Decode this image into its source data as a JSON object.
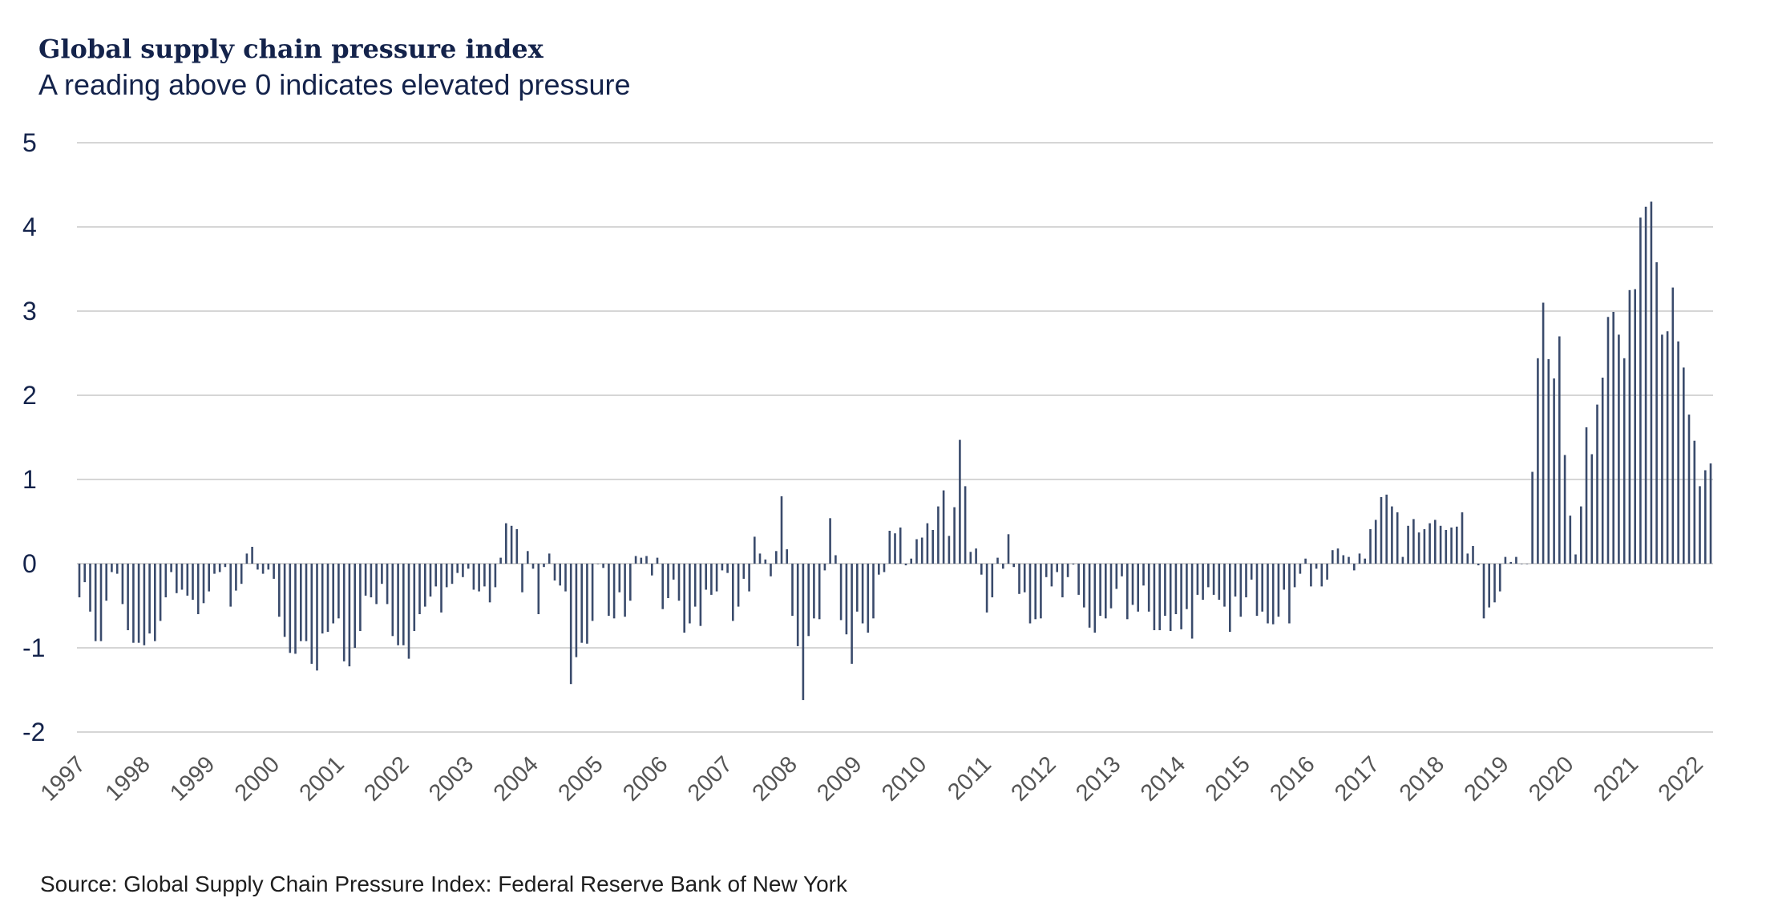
{
  "chart_data": {
    "type": "bar",
    "title": "Global supply chain pressure index",
    "subtitle": "A reading above 0 indicates elevated pressure",
    "source": "Source: Global Supply Chain Pressure Index: Federal Reserve Bank of New York",
    "xlabel": "",
    "ylabel": "",
    "ylim": [
      -2,
      5
    ],
    "y_ticks": [
      "5",
      "4",
      "3",
      "2",
      "1",
      "0",
      "-1",
      "-2"
    ],
    "y_tick_values": [
      5,
      4,
      3,
      2,
      1,
      0,
      -1,
      -2
    ],
    "x_ticks": [
      "1997",
      "1998",
      "1999",
      "2000",
      "2001",
      "2002",
      "2003",
      "2004",
      "2005",
      "2006",
      "2007",
      "2008",
      "2009",
      "2010",
      "2011",
      "2012",
      "2013",
      "2014",
      "2015",
      "2016",
      "2017",
      "2018",
      "2019",
      "2020",
      "2021",
      "2022"
    ],
    "frequency": "monthly",
    "grid": true,
    "colors": {
      "bars": "#3a4b6c",
      "grid": "#d6d6d6",
      "title": "#14234b"
    },
    "values": [
      -0.4,
      -0.22,
      -0.57,
      -0.92,
      -0.92,
      -0.44,
      -0.1,
      -0.12,
      -0.48,
      -0.79,
      -0.94,
      -0.94,
      -0.97,
      -0.83,
      -0.92,
      -0.68,
      -0.4,
      -0.1,
      -0.35,
      -0.31,
      -0.38,
      -0.43,
      -0.6,
      -0.47,
      -0.33,
      -0.12,
      -0.1,
      -0.04,
      -0.51,
      -0.32,
      -0.24,
      0.12,
      0.2,
      -0.07,
      -0.12,
      -0.07,
      -0.18,
      -0.63,
      -0.87,
      -1.06,
      -1.07,
      -0.92,
      -0.92,
      -1.19,
      -1.27,
      -0.83,
      -0.81,
      -0.71,
      -0.65,
      -1.16,
      -1.22,
      -1.0,
      -0.8,
      -0.38,
      -0.4,
      -0.48,
      -0.24,
      -0.48,
      -0.86,
      -0.97,
      -0.97,
      -1.13,
      -0.8,
      -0.6,
      -0.51,
      -0.39,
      -0.27,
      -0.58,
      -0.28,
      -0.24,
      -0.11,
      -0.16,
      -0.06,
      -0.31,
      -0.33,
      -0.27,
      -0.46,
      -0.28,
      0.07,
      0.48,
      0.45,
      0.41,
      -0.34,
      0.15,
      -0.06,
      -0.6,
      -0.04,
      0.12,
      -0.2,
      -0.26,
      -0.33,
      -1.43,
      -1.11,
      -0.94,
      -0.95,
      -0.68,
      0,
      -0.05,
      -0.62,
      -0.65,
      -0.34,
      -0.63,
      -0.44,
      0.09,
      0.07,
      0.09,
      -0.14,
      0.07,
      -0.54,
      -0.41,
      -0.19,
      -0.44,
      -0.82,
      -0.71,
      -0.51,
      -0.74,
      -0.31,
      -0.37,
      -0.33,
      -0.08,
      -0.11,
      -0.68,
      -0.51,
      -0.18,
      -0.33,
      0.32,
      0.12,
      0.05,
      -0.15,
      0.15,
      0.8,
      0.17,
      -0.62,
      -0.98,
      -1.62,
      -0.86,
      -0.65,
      -0.66,
      -0.08,
      0.54,
      0.1,
      -0.67,
      -0.84,
      -1.19,
      -0.57,
      -0.71,
      -0.82,
      -0.65,
      -0.13,
      -0.1,
      0.39,
      0.36,
      0.43,
      -0.02,
      0.06,
      0.29,
      0.31,
      0.48,
      0.4,
      0.68,
      0.87,
      0.33,
      0.67,
      1.47,
      0.92,
      0.14,
      0.18,
      -0.13,
      -0.58,
      -0.4,
      0.07,
      -0.06,
      0.35,
      -0.04,
      -0.36,
      -0.34,
      -0.71,
      -0.66,
      -0.65,
      -0.16,
      -0.27,
      -0.1,
      -0.4,
      -0.16,
      -0.01,
      -0.37,
      -0.52,
      -0.76,
      -0.82,
      -0.62,
      -0.65,
      -0.53,
      -0.3,
      -0.15,
      -0.66,
      -0.49,
      -0.57,
      -0.26,
      -0.57,
      -0.79,
      -0.79,
      -0.62,
      -0.8,
      -0.6,
      -0.78,
      -0.54,
      -0.89,
      -0.37,
      -0.43,
      -0.28,
      -0.37,
      -0.43,
      -0.51,
      -0.81,
      -0.39,
      -0.63,
      -0.4,
      -0.19,
      -0.62,
      -0.57,
      -0.71,
      -0.72,
      -0.63,
      -0.31,
      -0.71,
      -0.28,
      -0.12,
      0.06,
      -0.27,
      -0.06,
      -0.27,
      -0.19,
      0.16,
      0.18,
      0.1,
      0.08,
      -0.08,
      0.12,
      0.06,
      0.41,
      0.52,
      0.79,
      0.82,
      0.68,
      0.61,
      0.08,
      0.45,
      0.53,
      0.37,
      0.41,
      0.48,
      0.52,
      0.45,
      0.4,
      0.43,
      0.44,
      0.61,
      0.12,
      0.21,
      -0.02,
      -0.65,
      -0.52,
      -0.46,
      -0.33,
      0.08,
      0.02,
      0.08,
      0,
      0,
      1.09,
      2.44,
      3.1,
      2.43,
      2.2,
      2.7,
      1.29,
      0.57,
      0.11,
      0.68,
      1.62,
      1.3,
      1.89,
      2.21,
      2.93,
      2.99,
      2.72,
      2.44,
      3.25,
      3.26,
      4.11,
      4.24,
      4.3,
      3.58,
      2.72,
      2.76,
      3.28,
      2.64,
      2.33,
      1.77,
      1.46,
      0.92,
      1.11,
      1.19
    ]
  }
}
